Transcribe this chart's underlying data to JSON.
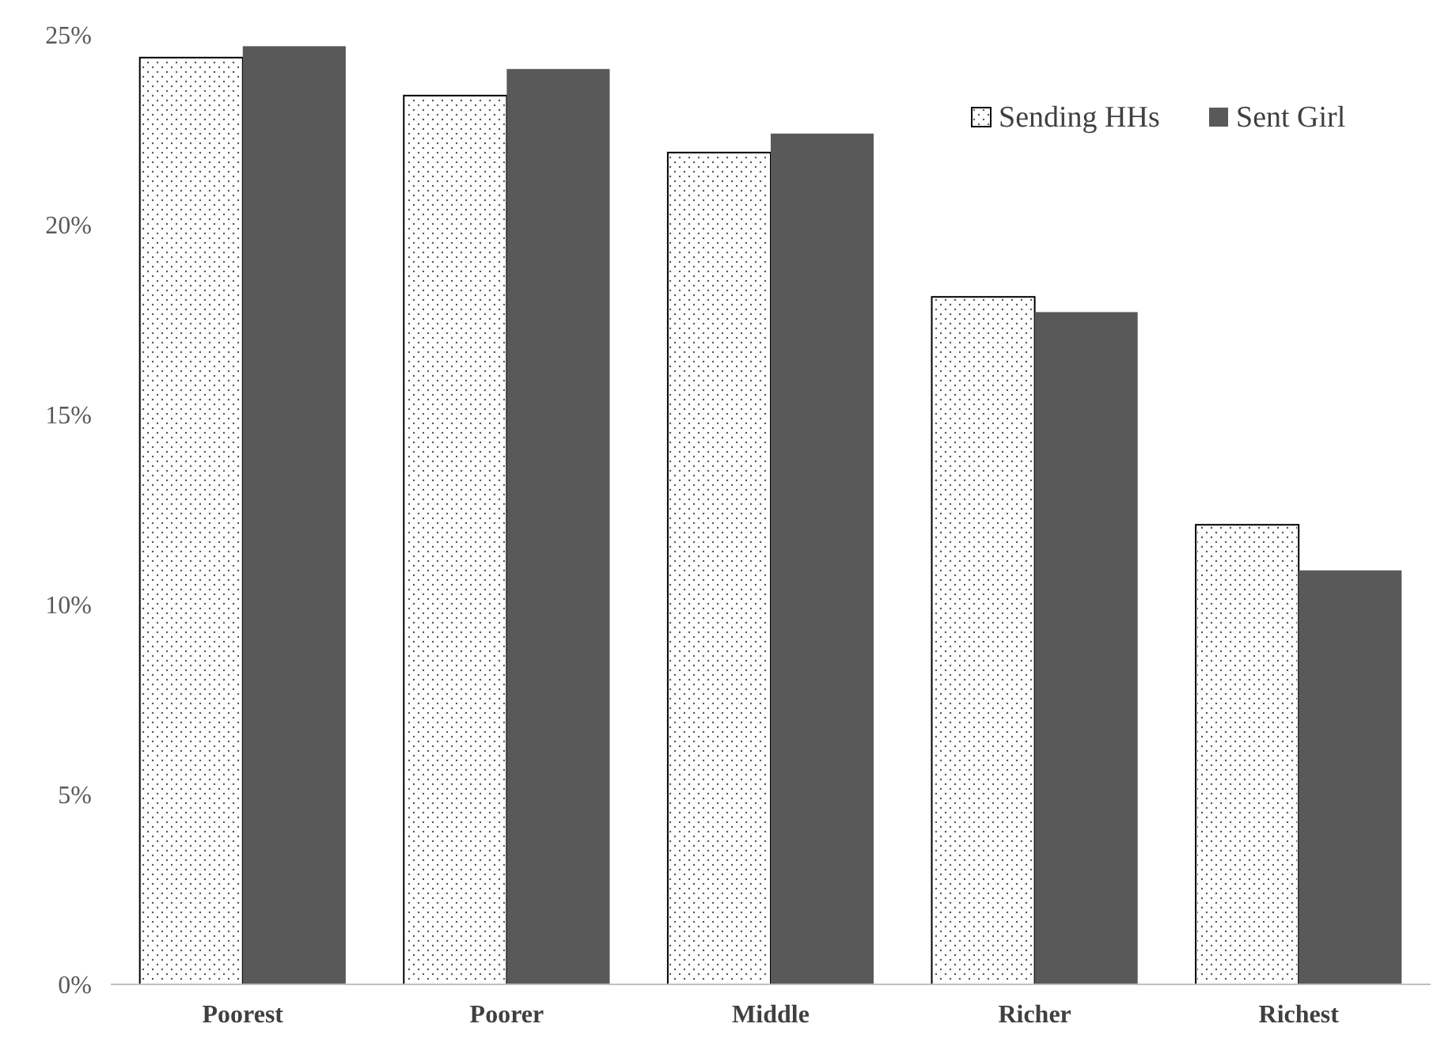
{
  "chart_data": {
    "type": "bar",
    "categories": [
      "Poorest",
      "Poorer",
      "Middle",
      "Richer",
      "Richest"
    ],
    "series": [
      {
        "name": "Sending HHs",
        "color": "#ffffff",
        "values": [
          24.4,
          23.4,
          21.9,
          18.1,
          12.1
        ]
      },
      {
        "name": "Sent Girl",
        "color": "#595959",
        "values": [
          24.7,
          24.1,
          22.4,
          17.7,
          10.9
        ]
      }
    ],
    "ylim": [
      0,
      25
    ],
    "yticks": [
      {
        "value": 0,
        "label": "0%"
      },
      {
        "value": 5,
        "label": "5%"
      },
      {
        "value": 10,
        "label": "10%"
      },
      {
        "value": 15,
        "label": "15%"
      },
      {
        "value": 20,
        "label": "20%"
      },
      {
        "value": 25,
        "label": "25%"
      }
    ],
    "legend": "top right"
  }
}
